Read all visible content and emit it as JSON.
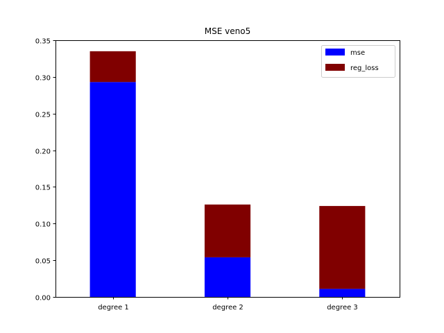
{
  "chart_data": {
    "type": "bar",
    "stacked": true,
    "title": "MSE veno5",
    "xlabel": "",
    "ylabel": "",
    "categories": [
      "degree 1",
      "degree 2",
      "degree 3"
    ],
    "series": [
      {
        "name": "mse",
        "values": [
          0.293,
          0.054,
          0.011
        ],
        "color": "#0000ff"
      },
      {
        "name": "reg_loss",
        "values": [
          0.042,
          0.072,
          0.113
        ],
        "color": "#800000"
      }
    ],
    "ylim": [
      0,
      0.35
    ],
    "yticks": [
      "0.00",
      "0.05",
      "0.10",
      "0.15",
      "0.20",
      "0.25",
      "0.30",
      "0.35"
    ],
    "legend": "top-right",
    "grid": false
  }
}
